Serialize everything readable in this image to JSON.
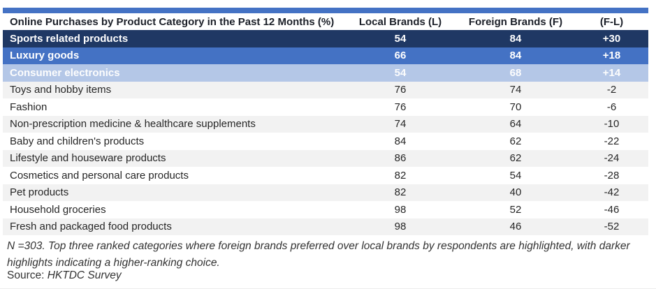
{
  "colors": {
    "accent": "#4472C4",
    "rank1": "#1F3864",
    "rank2": "#4472C4",
    "rank3": "#B4C7E7",
    "altrow": "#F2F2F2"
  },
  "table": {
    "header": {
      "category": "Online Purchases by Product Category in the Past 12 Months (%)",
      "local": "Local Brands (L)",
      "foreign": "Foreign Brands (F)",
      "diff": "(F-L)"
    },
    "rows": [
      {
        "category": "Sports related products",
        "local": "54",
        "foreign": "84",
        "diff": "+30",
        "rank": 1
      },
      {
        "category": "Luxury goods",
        "local": "66",
        "foreign": "84",
        "diff": "+18",
        "rank": 2
      },
      {
        "category": "Consumer electronics",
        "local": "54",
        "foreign": "68",
        "diff": "+14",
        "rank": 3
      },
      {
        "category": "Toys and hobby items",
        "local": "76",
        "foreign": "74",
        "diff": "-2",
        "rank": null
      },
      {
        "category": "Fashion",
        "local": "76",
        "foreign": "70",
        "diff": "-6",
        "rank": null
      },
      {
        "category": "Non-prescription medicine & healthcare supplements",
        "local": "74",
        "foreign": "64",
        "diff": "-10",
        "rank": null
      },
      {
        "category": "Baby and children's products",
        "local": "84",
        "foreign": "62",
        "diff": "-22",
        "rank": null
      },
      {
        "category": "Lifestyle and houseware products",
        "local": "86",
        "foreign": "62",
        "diff": "-24",
        "rank": null
      },
      {
        "category": "Cosmetics and personal care products",
        "local": "82",
        "foreign": "54",
        "diff": "-28",
        "rank": null
      },
      {
        "category": "Pet products",
        "local": "82",
        "foreign": "40",
        "diff": "-42",
        "rank": null
      },
      {
        "category": "Household groceries",
        "local": "98",
        "foreign": "52",
        "diff": "-46",
        "rank": null
      },
      {
        "category": "Fresh and packaged food products",
        "local": "98",
        "foreign": "46",
        "diff": "-52",
        "rank": null
      }
    ]
  },
  "footnote_text": "N =303. Top three ranked categories where foreign brands preferred over local brands by respondents are highlighted, with darker highlights indicating a higher-ranking choice.",
  "source": {
    "label": "Source:",
    "text": "HKTDC Survey"
  },
  "chart_data": {
    "type": "table",
    "title": "Online Purchases by Product Category in the Past 12 Months (%)",
    "columns": [
      "Online Purchases by Product Category in the Past 12 Months (%)",
      "Local Brands (L)",
      "Foreign Brands (F)",
      "(F-L)"
    ],
    "categories": [
      "Sports related products",
      "Luxury goods",
      "Consumer electronics",
      "Toys and hobby items",
      "Fashion",
      "Non-prescription medicine & healthcare supplements",
      "Baby and children's products",
      "Lifestyle and houseware products",
      "Cosmetics and personal care products",
      "Pet products",
      "Household groceries",
      "Fresh and packaged food products"
    ],
    "series": [
      {
        "name": "Local Brands (L)",
        "values": [
          54,
          66,
          54,
          76,
          76,
          74,
          84,
          86,
          82,
          82,
          98,
          98
        ]
      },
      {
        "name": "Foreign Brands (F)",
        "values": [
          84,
          84,
          68,
          74,
          70,
          64,
          62,
          62,
          54,
          40,
          52,
          46
        ]
      },
      {
        "name": "(F-L)",
        "values": [
          30,
          18,
          14,
          -2,
          -6,
          -10,
          -22,
          -24,
          -28,
          -42,
          -46,
          -52
        ]
      }
    ],
    "highlighted_top3": [
      "Sports related products",
      "Luxury goods",
      "Consumer electronics"
    ],
    "annotations": [
      "N =303. Top three ranked categories where foreign brands preferred over local brands by respondents are highlighted, with darker highlights indicating a higher-ranking choice.",
      "Source: HKTDC Survey"
    ]
  }
}
